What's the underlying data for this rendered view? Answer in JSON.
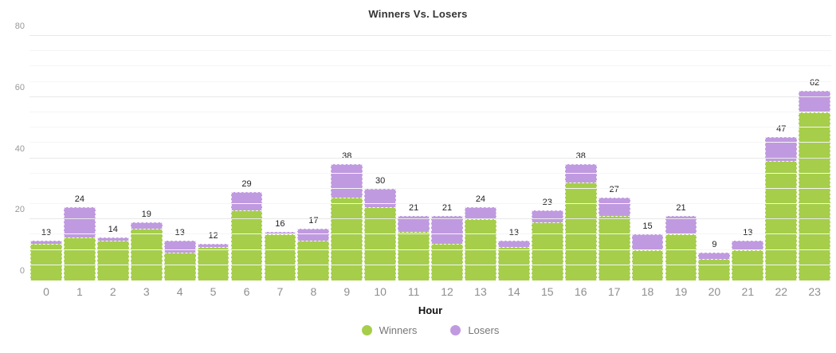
{
  "title": "Winners Vs. Losers",
  "chart_data": {
    "type": "bar",
    "stacked": true,
    "title": "Winners Vs. Losers",
    "xlabel": "Hour",
    "ylabel": "",
    "ylim": [
      0,
      80
    ],
    "yticks": [
      0,
      20,
      40,
      60,
      80
    ],
    "minor_grid_step": 5,
    "grid": true,
    "legend_position": "bottom",
    "categories": [
      "0",
      "1",
      "2",
      "3",
      "4",
      "5",
      "6",
      "7",
      "8",
      "9",
      "10",
      "11",
      "12",
      "13",
      "14",
      "15",
      "16",
      "17",
      "18",
      "19",
      "20",
      "21",
      "22",
      "23"
    ],
    "series": [
      {
        "name": "Winners",
        "color": "#a6ce4b",
        "values": [
          12,
          14,
          13,
          17,
          9,
          11,
          23,
          15,
          13,
          27,
          24,
          16,
          12,
          20,
          11,
          19,
          32,
          21,
          10,
          15,
          7,
          10,
          39,
          55
        ]
      },
      {
        "name": "Losers",
        "color": "#c09ae0",
        "values": [
          1,
          10,
          1,
          2,
          4,
          1,
          6,
          1,
          4,
          11,
          6,
          5,
          9,
          4,
          2,
          4,
          6,
          6,
          5,
          6,
          2,
          3,
          8,
          7
        ]
      }
    ],
    "totals": [
      13,
      24,
      14,
      19,
      13,
      12,
      29,
      16,
      17,
      38,
      30,
      21,
      21,
      24,
      13,
      23,
      38,
      27,
      15,
      21,
      9,
      13,
      47,
      62
    ]
  },
  "colors": {
    "winners": "#a6ce4b",
    "losers": "#c09ae0",
    "grid_major": "#e8e8e8",
    "grid_minor": "#f5f5f5",
    "axis_text": "#999999",
    "value_label": "#222222"
  }
}
